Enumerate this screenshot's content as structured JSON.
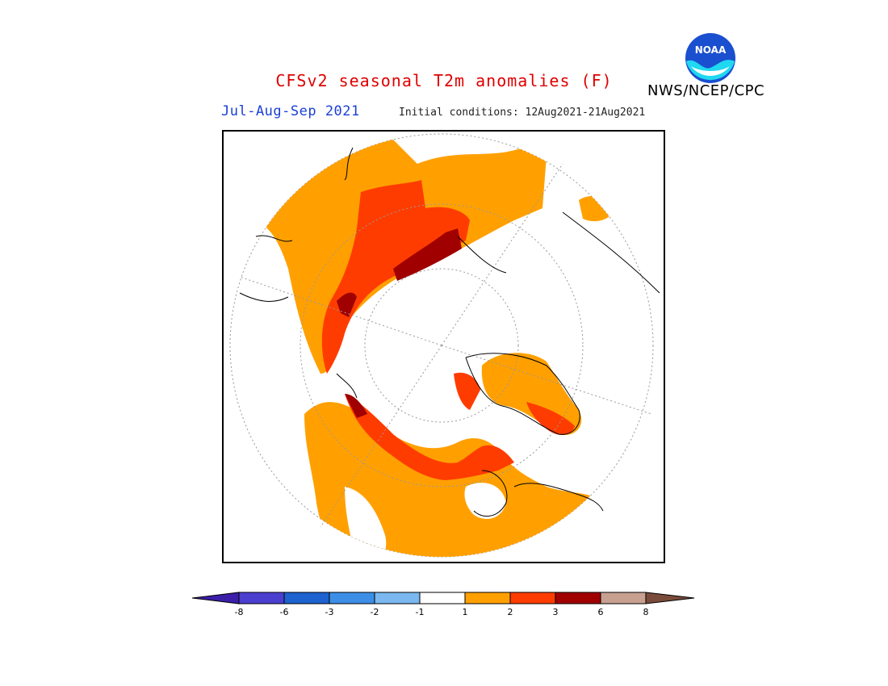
{
  "header": {
    "title": "CFSv2 seasonal T2m anomalies (F)",
    "title_color": "#e00000",
    "season": "Jul-Aug-Sep 2021",
    "season_color": "#1a3fd6",
    "initial_conditions": "Initial conditions: 12Aug2021-21Aug2021",
    "agency": "NWS/NCEP/CPC",
    "logo_text": "NOAA"
  },
  "map": {
    "projection": "north polar stereographic",
    "field": "2m temperature anomaly (F)",
    "regions": [
      {
        "region": "Northern Asia / Siberia",
        "category": "1 to 2"
      },
      {
        "region": "Central Siberia",
        "category": "2 to 3"
      },
      {
        "region": "Taymyr / Laptev coast",
        "category": "3 to 6"
      },
      {
        "region": "Alaska / NW Canada",
        "category": "2 to 3"
      },
      {
        "region": "Canada interior",
        "category": "1 to 2"
      },
      {
        "region": "Canadian Archipelago",
        "category": "2 to 3"
      },
      {
        "region": "Greenland",
        "category": "1 to 2"
      },
      {
        "region": "Arctic Ocean / Europe",
        "category": "-1 to 1"
      }
    ]
  },
  "colorbar": {
    "labels": [
      "-8",
      "-6",
      "-3",
      "-2",
      "-1",
      "1",
      "2",
      "3",
      "6",
      "8"
    ],
    "colors": [
      "#3b1fa8",
      "#4b3fd0",
      "#1d62cf",
      "#3d8ee6",
      "#7ab8ef",
      "#ffffff",
      "#ffa000",
      "#ff3c00",
      "#a00000",
      "#c8a090",
      "#7a4a3a"
    ]
  }
}
